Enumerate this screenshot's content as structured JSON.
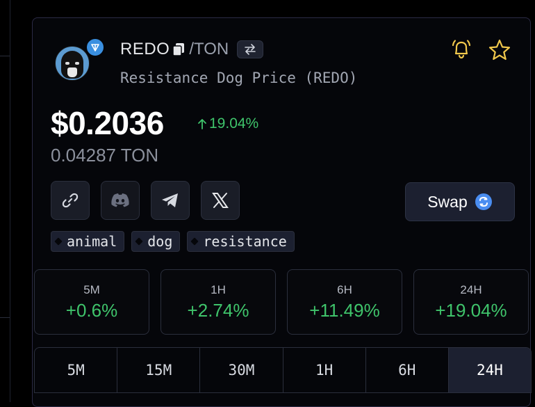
{
  "token": {
    "symbol": "REDO",
    "quote_symbol": "/TON",
    "full_name": "Resistance Dog Price (REDO)",
    "price_usd": "$0.2036",
    "change_24h": "19.04%",
    "price_native": "0.04287 TON"
  },
  "actions": {
    "swap_label": "Swap"
  },
  "socials": [
    "link-icon",
    "discord-icon",
    "telegram-icon",
    "x-icon"
  ],
  "tags": [
    "animal",
    "dog",
    "resistance"
  ],
  "stats": [
    {
      "period": "5M",
      "value": "+0.6%"
    },
    {
      "period": "1H",
      "value": "+2.74%"
    },
    {
      "period": "6H",
      "value": "+11.49%"
    },
    {
      "period": "24H",
      "value": "+19.04%"
    }
  ],
  "timeframes": [
    "5M",
    "15M",
    "30M",
    "1H",
    "6H",
    "24H"
  ],
  "selected_timeframe": "24H",
  "colors": {
    "positive": "#3fc46b",
    "accent_yellow": "#f2c94c",
    "ton_blue": "#3a8fe0"
  }
}
